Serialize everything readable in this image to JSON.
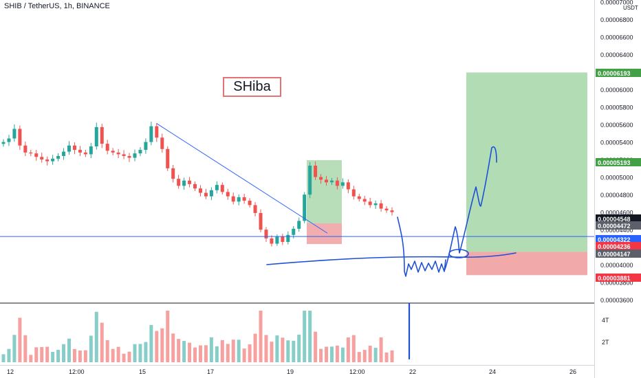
{
  "legend": {
    "symbol": "SHIB / TetherUS, 1h, BINANCE"
  },
  "annotation": {
    "text": "SHiba"
  },
  "colors": {
    "up": "#26a69a",
    "down": "#ef5350",
    "line": "#2962ff",
    "profit": "#a5d6a7",
    "loss": "#ef9a9a",
    "pen": "#1e4fd8"
  },
  "chart_data": {
    "type": "candlestick",
    "title": "SHIB / TetherUS, 1h, BINANCE",
    "currency": "USDT",
    "price_axis_ticks": [
      "0.00007000",
      "0.00006800",
      "0.00006600",
      "0.00006400",
      "0.00006200",
      "0.00006000",
      "0.00005800",
      "0.00005600",
      "0.00005400",
      "0.00005200",
      "0.00005000",
      "0.00004800",
      "0.00004600",
      "0.00004400",
      "0.00004200",
      "0.00004000",
      "0.00003800",
      "0.00003600"
    ],
    "price_range": [
      3.57e-05,
      7.02e-05
    ],
    "time_axis_ticks": [
      "12",
      "12:00",
      "15",
      "17",
      "19",
      "12:00",
      "22",
      "24",
      "26"
    ],
    "volume_axis_ticks": [
      "4T",
      "2T"
    ],
    "price_badges": [
      {
        "label": "0.00006193",
        "kind": "target"
      },
      {
        "label": "0.00005193",
        "kind": "target"
      },
      {
        "label": "0.00004548",
        "kind": "last"
      },
      {
        "label": "0.00004472",
        "kind": "level"
      },
      {
        "label": "0.00004322",
        "kind": "horizontal-line"
      },
      {
        "label": "0.00004236",
        "kind": "stop"
      },
      {
        "label": "0.00004147",
        "kind": "entry"
      },
      {
        "label": "0.00003881",
        "kind": "stop"
      }
    ],
    "horizontal_line": 4.322e-05,
    "trend_line": {
      "from_price": 5.61e-05,
      "to_price": 4.36e-05
    },
    "position_small": {
      "entry": 4.472e-05,
      "target": 5.193e-05,
      "stop": 4.236e-05
    },
    "position_large": {
      "entry": 4.147e-05,
      "target": 6.193e-05,
      "stop": 3.881e-05
    },
    "candles_approx_close": [
      5.4e-05,
      5.44e-05,
      5.55e-05,
      5.36e-05,
      5.28e-05,
      5.27e-05,
      5.23e-05,
      5.2e-05,
      5.18e-05,
      5.21e-05,
      5.24e-05,
      5.29e-05,
      5.36e-05,
      5.31e-05,
      5.28e-05,
      5.26e-05,
      5.35e-05,
      5.57e-05,
      5.38e-05,
      5.3e-05,
      5.28e-05,
      5.26e-05,
      5.24e-05,
      5.22e-05,
      5.27e-05,
      5.31e-05,
      5.4e-05,
      5.58e-05,
      5.45e-05,
      5.32e-05,
      5.1e-05,
      4.98e-05,
      4.9e-05,
      4.96e-05,
      4.92e-05,
      4.87e-05,
      4.82e-05,
      4.78e-05,
      4.85e-05,
      4.91e-05,
      4.83e-05,
      4.78e-05,
      4.72e-05,
      4.77e-05,
      4.73e-05,
      4.68e-05,
      4.59e-05,
      4.4e-05,
      4.3e-05,
      4.24e-05,
      4.32e-05,
      4.26e-05,
      4.34e-05,
      4.41e-05,
      4.5e-05,
      4.8e-05,
      5.13e-05,
      5e-05,
      4.97e-05,
      4.94e-05,
      4.96e-05,
      4.9e-05,
      4.94e-05,
      4.86e-05,
      4.78e-05,
      4.75e-05,
      4.72e-05,
      4.68e-05,
      4.7e-05,
      4.64e-05,
      4.62e-05,
      4.6e-05
    ]
  }
}
